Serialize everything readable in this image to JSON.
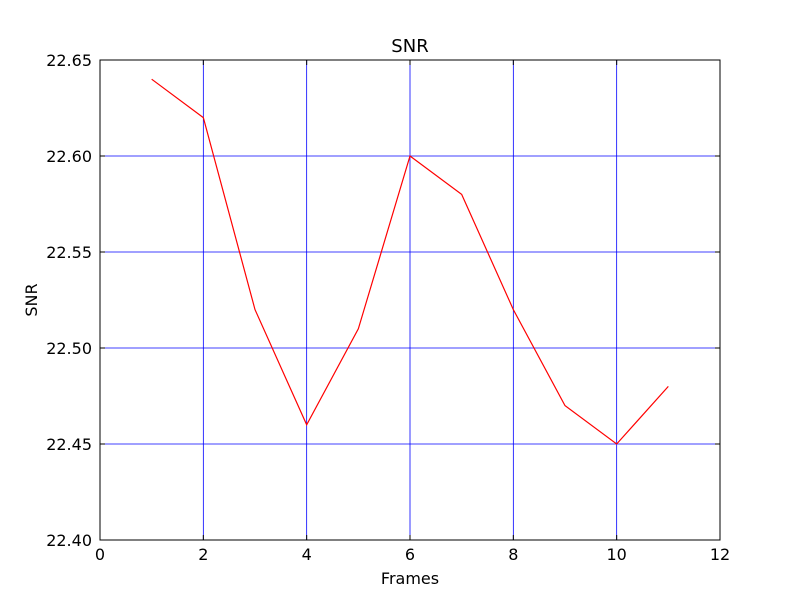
{
  "chart_data": {
    "type": "line",
    "title": "SNR",
    "xlabel": "Frames",
    "ylabel": "SNR",
    "xlim": [
      0,
      12
    ],
    "ylim": [
      22.4,
      22.65
    ],
    "x_ticks": [
      0,
      2,
      4,
      6,
      8,
      10,
      12
    ],
    "x_tick_labels": [
      "0",
      "2",
      "4",
      "6",
      "8",
      "10",
      "12"
    ],
    "y_ticks": [
      22.4,
      22.45,
      22.5,
      22.55,
      22.6,
      22.65
    ],
    "y_tick_labels": [
      "22.40",
      "22.45",
      "22.50",
      "22.55",
      "22.60",
      "22.65"
    ],
    "grid": true,
    "grid_color": "#0000ff",
    "series": [
      {
        "color": "#ff0000",
        "x": [
          1,
          2,
          3,
          4,
          5,
          6,
          7,
          8,
          9,
          10,
          11
        ],
        "y": [
          22.64,
          22.62,
          22.52,
          22.46,
          22.51,
          22.6,
          22.58,
          22.52,
          22.47,
          22.45,
          22.48
        ]
      }
    ]
  }
}
